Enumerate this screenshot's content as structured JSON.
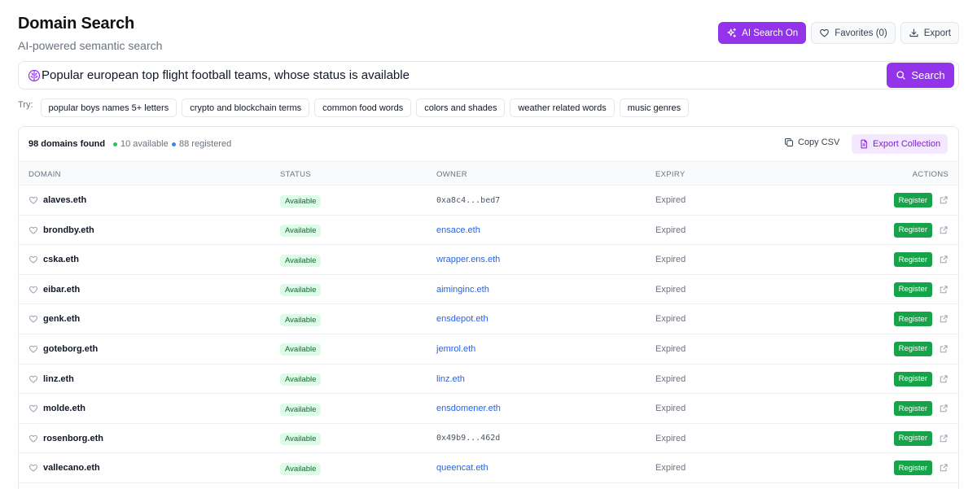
{
  "header": {
    "title": "Domain Search",
    "subtitle": "AI-powered semantic search"
  },
  "top_actions": {
    "ai_search_label": "AI Search On",
    "favorites_label": "Favorites (0)",
    "export_label": "Export"
  },
  "search": {
    "value": "Popular european top flight football teams, whose status is available",
    "button_label": "Search"
  },
  "suggestions": {
    "label": "Try:",
    "chips": [
      "popular boys names 5+ letters",
      "crypto and blockchain terms",
      "common food words",
      "colors and shades",
      "weather related words",
      "music genres"
    ]
  },
  "results": {
    "count_label": "98 domains found",
    "available_label": "10 available",
    "registered_label": "88 registered",
    "copy_csv_label": "Copy CSV",
    "export_collection_label": "Export Collection",
    "columns": {
      "domain": "DOMAIN",
      "status": "STATUS",
      "owner": "OWNER",
      "expiry": "EXPIRY",
      "actions": "ACTIONS"
    },
    "rows": [
      {
        "domain": "alaves.eth",
        "status": "Available",
        "owner": "0xa8c4...bed7",
        "owner_is_address": true,
        "expiry": "Expired",
        "action": "Register"
      },
      {
        "domain": "brondby.eth",
        "status": "Available",
        "owner": "ensace.eth",
        "owner_is_address": false,
        "expiry": "Expired",
        "action": "Register"
      },
      {
        "domain": "cska.eth",
        "status": "Available",
        "owner": "wrapper.ens.eth",
        "owner_is_address": false,
        "expiry": "Expired",
        "action": "Register"
      },
      {
        "domain": "eibar.eth",
        "status": "Available",
        "owner": "aiminginc.eth",
        "owner_is_address": false,
        "expiry": "Expired",
        "action": "Register"
      },
      {
        "domain": "genk.eth",
        "status": "Available",
        "owner": "ensdepot.eth",
        "owner_is_address": false,
        "expiry": "Expired",
        "action": "Register"
      },
      {
        "domain": "goteborg.eth",
        "status": "Available",
        "owner": "jemrol.eth",
        "owner_is_address": false,
        "expiry": "Expired",
        "action": "Register"
      },
      {
        "domain": "linz.eth",
        "status": "Available",
        "owner": "linz.eth",
        "owner_is_address": false,
        "expiry": "Expired",
        "action": "Register"
      },
      {
        "domain": "molde.eth",
        "status": "Available",
        "owner": "ensdomener.eth",
        "owner_is_address": false,
        "expiry": "Expired",
        "action": "Register"
      },
      {
        "domain": "rosenborg.eth",
        "status": "Available",
        "owner": "0x49b9...462d",
        "owner_is_address": true,
        "expiry": "Expired",
        "action": "Register"
      },
      {
        "domain": "vallecano.eth",
        "status": "Available",
        "owner": "queencat.eth",
        "owner_is_address": false,
        "expiry": "Expired",
        "action": "Register"
      }
    ]
  },
  "colors": {
    "accent": "#9333ea",
    "available_dot": "#22c55e",
    "registered_dot": "#3b82f6",
    "register_button": "#16a34a",
    "link": "#2563eb"
  },
  "icons": {
    "ai": "sparkles-icon",
    "favorites": "heart-icon",
    "export": "download-icon",
    "search_left": "brain-icon",
    "search_button": "search-icon",
    "copy": "copy-icon",
    "export_collection": "file-icon",
    "row_favorite": "heart-icon",
    "row_link": "external-link-icon"
  }
}
